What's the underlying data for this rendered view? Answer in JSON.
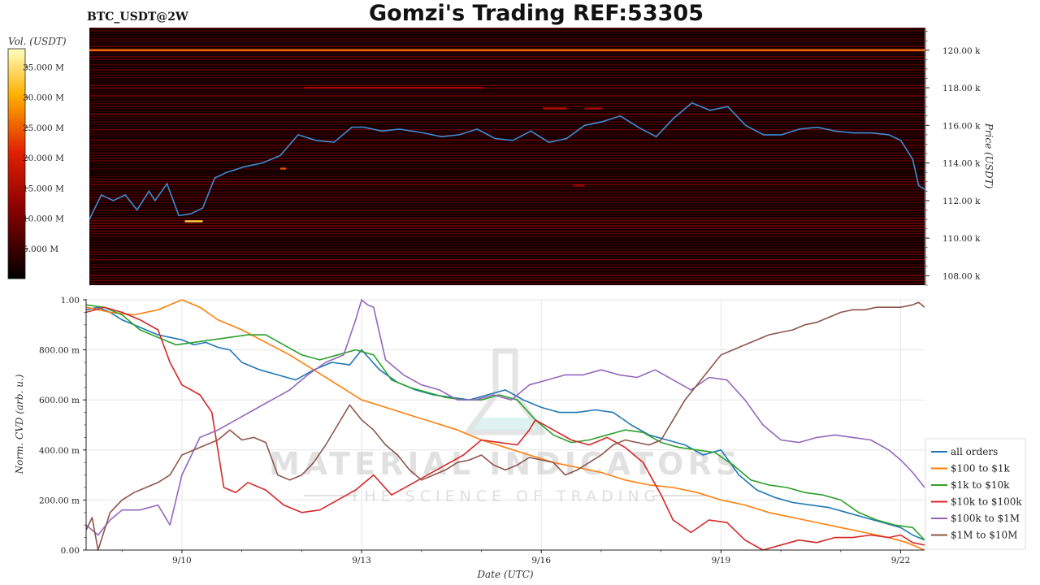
{
  "header": {
    "title": "Gomzi's Trading REF:53305",
    "symbol": "BTC_USDT@2W"
  },
  "watermark": {
    "line1": "MATERIAL INDICATORS",
    "line2": "THE SCIENCE OF TRADING",
    "logo_icon": "flask-icon"
  },
  "colorbar": {
    "label": "Vol. (USDT)",
    "ticks": [
      "35.000 M",
      "30.000 M",
      "25.000 M",
      "20.000 M",
      "15.000 M",
      "10.000 M",
      "5.000 M"
    ],
    "tick_values": [
      35,
      30,
      25,
      20,
      15,
      10,
      5
    ],
    "range": [
      0,
      38
    ]
  },
  "chart_data": [
    {
      "type": "heatmap",
      "title": "BTC_USDT@2W",
      "ylabel": "Price (USDT)",
      "ylim": [
        107.5,
        121.2
      ],
      "yticks": [
        "120.00 k",
        "118.00 k",
        "116.00 k",
        "114.00 k",
        "112.00 k",
        "110.00 k",
        "108.00 k"
      ],
      "ytick_values": [
        120,
        118,
        116,
        114,
        112,
        110,
        108
      ],
      "xlim": [
        8.4,
        22.4
      ],
      "series": [
        {
          "kind": "line",
          "color": "#3d8bd4",
          "x": [
            8.4,
            8.6,
            8.8,
            9.0,
            9.2,
            9.4,
            9.5,
            9.7,
            9.9,
            10.1,
            10.3,
            10.5,
            10.7,
            11.0,
            11.3,
            11.6,
            11.9,
            12.2,
            12.5,
            12.8,
            13.0,
            13.3,
            13.6,
            14.0,
            14.3,
            14.6,
            14.9,
            15.2,
            15.5,
            15.8,
            16.1,
            16.4,
            16.7,
            17.0,
            17.3,
            17.6,
            17.9,
            18.2,
            18.5,
            18.8,
            19.1,
            19.4,
            19.7,
            20.0,
            20.3,
            20.6,
            20.9,
            21.2,
            21.5,
            21.8,
            22.0,
            22.2,
            22.3,
            22.4
          ],
          "y": [
            111.0,
            112.3,
            112.0,
            112.3,
            111.5,
            112.5,
            112.0,
            112.9,
            111.2,
            111.3,
            111.6,
            113.2,
            113.5,
            113.8,
            114.0,
            114.4,
            115.5,
            115.2,
            115.1,
            115.9,
            115.9,
            115.7,
            115.8,
            115.6,
            115.4,
            115.5,
            115.8,
            115.3,
            115.2,
            115.7,
            115.1,
            115.3,
            116.0,
            116.2,
            116.5,
            115.9,
            115.4,
            116.4,
            117.2,
            116.8,
            117.0,
            116.0,
            115.5,
            115.5,
            115.8,
            115.9,
            115.7,
            115.6,
            115.6,
            115.5,
            115.2,
            114.2,
            112.8,
            112.6
          ]
        }
      ],
      "bright_levels": [
        {
          "price": 120.0,
          "x0": 8.4,
          "x1": 22.4,
          "intensity": 26
        },
        {
          "price": 118.0,
          "x0": 12.0,
          "x1": 15.0,
          "intensity": 14
        },
        {
          "price": 116.9,
          "x0": 16.0,
          "x1": 16.4,
          "intensity": 16
        },
        {
          "price": 116.9,
          "x0": 16.7,
          "x1": 17.0,
          "intensity": 14
        },
        {
          "price": 110.9,
          "x0": 10.0,
          "x1": 10.3,
          "intensity": 33
        },
        {
          "price": 113.7,
          "x0": 11.6,
          "x1": 11.7,
          "intensity": 24
        },
        {
          "price": 112.8,
          "x0": 16.5,
          "x1": 16.7,
          "intensity": 12
        }
      ]
    },
    {
      "type": "line",
      "xlabel": "Date (UTC)",
      "ylabel": "Norm. CVD (arb. u.)",
      "ylim": [
        0,
        1.0
      ],
      "yticks": [
        "1.00",
        "800.00 m",
        "600.00 m",
        "400.00 m",
        "200.00 m",
        "0.00"
      ],
      "ytick_values": [
        1.0,
        0.8,
        0.6,
        0.4,
        0.2,
        0.0
      ],
      "xlim": [
        8.4,
        22.4
      ],
      "xticks": [
        "9/10",
        "9/13",
        "9/16",
        "9/19",
        "9/22"
      ],
      "xtick_values": [
        10,
        13,
        16,
        19,
        22
      ],
      "grid": true,
      "legend_position": "right",
      "series": [
        {
          "name": "all orders",
          "color": "#1f77b4",
          "x": [
            8.4,
            8.6,
            8.8,
            9.0,
            9.2,
            9.4,
            9.6,
            9.8,
            10.0,
            10.2,
            10.4,
            10.6,
            10.8,
            11.0,
            11.3,
            11.6,
            11.9,
            12.2,
            12.5,
            12.8,
            13.0,
            13.3,
            13.6,
            13.9,
            14.2,
            14.5,
            14.8,
            15.1,
            15.4,
            15.7,
            16.0,
            16.3,
            16.6,
            16.9,
            17.2,
            17.5,
            17.8,
            18.1,
            18.4,
            18.7,
            19.0,
            19.3,
            19.6,
            19.9,
            20.2,
            20.5,
            20.8,
            21.1,
            21.4,
            21.7,
            22.0,
            22.2,
            22.4
          ],
          "y": [
            0.96,
            0.97,
            0.95,
            0.92,
            0.9,
            0.88,
            0.86,
            0.85,
            0.84,
            0.82,
            0.83,
            0.81,
            0.8,
            0.75,
            0.72,
            0.7,
            0.68,
            0.72,
            0.75,
            0.74,
            0.8,
            0.72,
            0.67,
            0.64,
            0.62,
            0.61,
            0.6,
            0.62,
            0.64,
            0.6,
            0.57,
            0.55,
            0.55,
            0.56,
            0.55,
            0.5,
            0.46,
            0.44,
            0.42,
            0.38,
            0.4,
            0.3,
            0.24,
            0.21,
            0.19,
            0.18,
            0.17,
            0.15,
            0.13,
            0.11,
            0.09,
            0.06,
            0.04
          ]
        },
        {
          "name": "$100 to $1k",
          "color": "#ff7f0e",
          "x": [
            8.4,
            8.8,
            9.2,
            9.6,
            10.0,
            10.3,
            10.6,
            11.0,
            11.4,
            11.8,
            12.2,
            12.6,
            13.0,
            13.4,
            13.8,
            14.2,
            14.6,
            15.0,
            15.4,
            15.8,
            16.2,
            16.6,
            17.0,
            17.4,
            17.8,
            18.2,
            18.6,
            19.0,
            19.4,
            19.8,
            20.2,
            20.6,
            21.0,
            21.4,
            21.8,
            22.1,
            22.4
          ],
          "y": [
            0.97,
            0.95,
            0.94,
            0.96,
            1.0,
            0.97,
            0.92,
            0.88,
            0.83,
            0.78,
            0.72,
            0.66,
            0.6,
            0.57,
            0.54,
            0.51,
            0.48,
            0.44,
            0.41,
            0.38,
            0.35,
            0.33,
            0.31,
            0.28,
            0.26,
            0.25,
            0.23,
            0.2,
            0.18,
            0.15,
            0.13,
            0.11,
            0.09,
            0.07,
            0.05,
            0.03,
            0.0
          ]
        },
        {
          "name": "$1k to $10k",
          "color": "#2ca02c",
          "x": [
            8.4,
            8.7,
            9.0,
            9.3,
            9.6,
            9.9,
            10.2,
            10.5,
            10.8,
            11.1,
            11.4,
            11.7,
            12.0,
            12.3,
            12.6,
            12.9,
            13.2,
            13.5,
            13.8,
            14.1,
            14.4,
            14.7,
            15.0,
            15.3,
            15.6,
            15.9,
            16.2,
            16.5,
            16.8,
            17.1,
            17.4,
            17.7,
            18.0,
            18.3,
            18.6,
            18.9,
            19.2,
            19.5,
            19.8,
            20.1,
            20.4,
            20.7,
            21.0,
            21.3,
            21.6,
            21.9,
            22.2,
            22.4
          ],
          "y": [
            0.98,
            0.97,
            0.94,
            0.88,
            0.85,
            0.82,
            0.83,
            0.84,
            0.85,
            0.86,
            0.86,
            0.82,
            0.78,
            0.76,
            0.78,
            0.8,
            0.78,
            0.68,
            0.65,
            0.63,
            0.61,
            0.6,
            0.6,
            0.62,
            0.6,
            0.52,
            0.46,
            0.43,
            0.44,
            0.46,
            0.48,
            0.47,
            0.43,
            0.41,
            0.4,
            0.39,
            0.34,
            0.28,
            0.26,
            0.25,
            0.23,
            0.22,
            0.2,
            0.15,
            0.12,
            0.1,
            0.09,
            0.04
          ]
        },
        {
          "name": "$10k to $100k",
          "color": "#d62728",
          "x": [
            8.4,
            8.7,
            9.0,
            9.3,
            9.6,
            9.8,
            10.0,
            10.3,
            10.5,
            10.7,
            10.9,
            11.1,
            11.4,
            11.7,
            12.0,
            12.3,
            12.6,
            12.9,
            13.2,
            13.5,
            13.8,
            14.1,
            14.4,
            14.7,
            15.0,
            15.3,
            15.6,
            15.8,
            15.9,
            16.2,
            16.5,
            16.8,
            17.1,
            17.4,
            17.7,
            18.0,
            18.2,
            18.5,
            18.8,
            19.1,
            19.4,
            19.7,
            20.0,
            20.3,
            20.6,
            20.9,
            21.2,
            21.5,
            21.8,
            22.0,
            22.2,
            22.4
          ],
          "y": [
            0.95,
            0.97,
            0.95,
            0.92,
            0.88,
            0.75,
            0.66,
            0.62,
            0.55,
            0.25,
            0.23,
            0.27,
            0.24,
            0.18,
            0.15,
            0.16,
            0.2,
            0.24,
            0.3,
            0.22,
            0.26,
            0.3,
            0.34,
            0.38,
            0.44,
            0.43,
            0.42,
            0.48,
            0.52,
            0.48,
            0.44,
            0.42,
            0.45,
            0.41,
            0.35,
            0.22,
            0.12,
            0.07,
            0.12,
            0.11,
            0.04,
            0.0,
            0.02,
            0.04,
            0.03,
            0.05,
            0.05,
            0.06,
            0.05,
            0.06,
            0.03,
            0.02
          ]
        },
        {
          "name": "$100k to $1M",
          "color": "#9467bd",
          "x": [
            8.4,
            8.6,
            8.8,
            9.0,
            9.3,
            9.6,
            9.8,
            10.0,
            10.3,
            10.6,
            10.9,
            11.2,
            11.5,
            11.8,
            12.1,
            12.4,
            12.7,
            12.9,
            13.0,
            13.1,
            13.2,
            13.4,
            13.7,
            14.0,
            14.3,
            14.6,
            14.9,
            15.2,
            15.5,
            15.8,
            16.1,
            16.4,
            16.7,
            17.0,
            17.3,
            17.6,
            17.9,
            18.2,
            18.5,
            18.8,
            19.1,
            19.4,
            19.7,
            20.0,
            20.3,
            20.6,
            20.9,
            21.2,
            21.5,
            21.8,
            22.0,
            22.2,
            22.4
          ],
          "y": [
            0.1,
            0.06,
            0.12,
            0.16,
            0.16,
            0.18,
            0.1,
            0.3,
            0.45,
            0.48,
            0.52,
            0.56,
            0.6,
            0.64,
            0.7,
            0.75,
            0.78,
            0.92,
            1.0,
            0.98,
            0.97,
            0.76,
            0.7,
            0.66,
            0.64,
            0.6,
            0.6,
            0.62,
            0.6,
            0.66,
            0.68,
            0.7,
            0.7,
            0.72,
            0.7,
            0.69,
            0.72,
            0.68,
            0.64,
            0.69,
            0.68,
            0.6,
            0.5,
            0.44,
            0.43,
            0.45,
            0.46,
            0.45,
            0.44,
            0.4,
            0.36,
            0.31,
            0.25
          ]
        },
        {
          "name": "$1M to $10M",
          "color": "#8c564b",
          "x": [
            8.4,
            8.5,
            8.6,
            8.8,
            9.0,
            9.2,
            9.4,
            9.6,
            9.8,
            10.0,
            10.2,
            10.4,
            10.6,
            10.8,
            11.0,
            11.2,
            11.4,
            11.6,
            11.8,
            12.0,
            12.2,
            12.4,
            12.6,
            12.8,
            13.0,
            13.2,
            13.4,
            13.6,
            13.8,
            14.0,
            14.2,
            14.4,
            14.6,
            14.8,
            15.0,
            15.2,
            15.4,
            15.6,
            15.8,
            16.0,
            16.2,
            16.4,
            16.6,
            16.8,
            17.0,
            17.2,
            17.4,
            17.6,
            17.8,
            18.0,
            18.2,
            18.4,
            18.6,
            18.8,
            19.0,
            19.2,
            19.4,
            19.6,
            19.8,
            20.0,
            20.2,
            20.4,
            20.6,
            20.8,
            21.0,
            21.2,
            21.4,
            21.6,
            21.8,
            22.0,
            22.2,
            22.3,
            22.4
          ],
          "y": [
            0.08,
            0.13,
            0.0,
            0.15,
            0.2,
            0.23,
            0.25,
            0.27,
            0.3,
            0.38,
            0.4,
            0.42,
            0.44,
            0.48,
            0.44,
            0.45,
            0.43,
            0.3,
            0.28,
            0.3,
            0.35,
            0.42,
            0.5,
            0.58,
            0.52,
            0.48,
            0.42,
            0.38,
            0.32,
            0.28,
            0.3,
            0.32,
            0.35,
            0.36,
            0.38,
            0.34,
            0.32,
            0.34,
            0.37,
            0.36,
            0.35,
            0.3,
            0.32,
            0.35,
            0.38,
            0.42,
            0.44,
            0.43,
            0.42,
            0.44,
            0.52,
            0.6,
            0.66,
            0.72,
            0.78,
            0.8,
            0.82,
            0.84,
            0.86,
            0.87,
            0.88,
            0.9,
            0.91,
            0.93,
            0.95,
            0.96,
            0.96,
            0.97,
            0.97,
            0.97,
            0.98,
            0.99,
            0.97
          ]
        }
      ]
    }
  ]
}
